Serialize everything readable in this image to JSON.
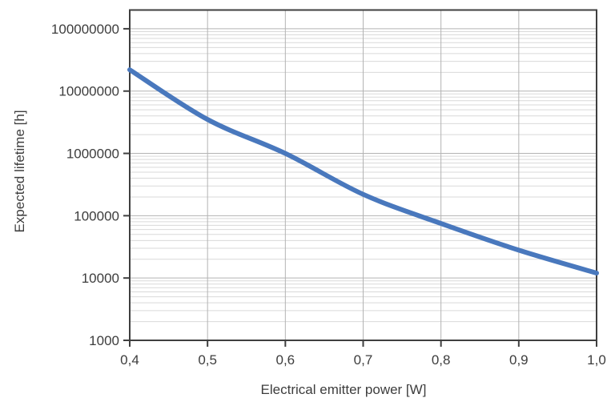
{
  "chart_data": {
    "type": "line",
    "title": "",
    "xlabel": "Electrical emitter power [W]",
    "ylabel": "Expected lifetime [h]",
    "x": [
      0.4,
      0.5,
      0.6,
      0.7,
      0.8,
      0.9,
      1.0
    ],
    "y": [
      22000000,
      3500000,
      1000000,
      220000,
      75000,
      28000,
      12000
    ],
    "series": [
      {
        "name": "Expected lifetime",
        "points": [
          {
            "power_w": 0.4,
            "lifetime_h": 22000000
          },
          {
            "power_w": 0.5,
            "lifetime_h": 3500000
          },
          {
            "power_w": 0.6,
            "lifetime_h": 1000000
          },
          {
            "power_w": 0.7,
            "lifetime_h": 220000
          },
          {
            "power_w": 0.8,
            "lifetime_h": 75000
          },
          {
            "power_w": 0.9,
            "lifetime_h": 28000
          },
          {
            "power_w": 1.0,
            "lifetime_h": 12000
          }
        ]
      }
    ],
    "x_tick_values": [
      0.4,
      0.5,
      0.6,
      0.7,
      0.8,
      0.9,
      1.0
    ],
    "x_tick_labels": [
      "0,4",
      "0,5",
      "0,6",
      "0,7",
      "0,8",
      "0,9",
      "1,0"
    ],
    "y_tick_values": [
      1000,
      10000,
      100000,
      1000000,
      10000000,
      100000000
    ],
    "y_tick_labels": [
      "1000",
      "10000",
      "100000",
      "1000000",
      "10000000",
      "100000000"
    ],
    "xlim": [
      0.4,
      1.0
    ],
    "ylim": [
      1000,
      200000000
    ],
    "x_scale": "linear",
    "y_scale": "log",
    "grid": {
      "major_horizontal": true,
      "minor_horizontal_log": true,
      "vertical": true
    },
    "legend": "none",
    "line_style": "smooth"
  },
  "colors": {
    "line": "#4978bd",
    "axis": "#3f3f3f",
    "text": "#3d3d3d",
    "grid_major": "#b3b3b3",
    "grid_minor": "#d9d9d9",
    "background": "#ffffff"
  }
}
